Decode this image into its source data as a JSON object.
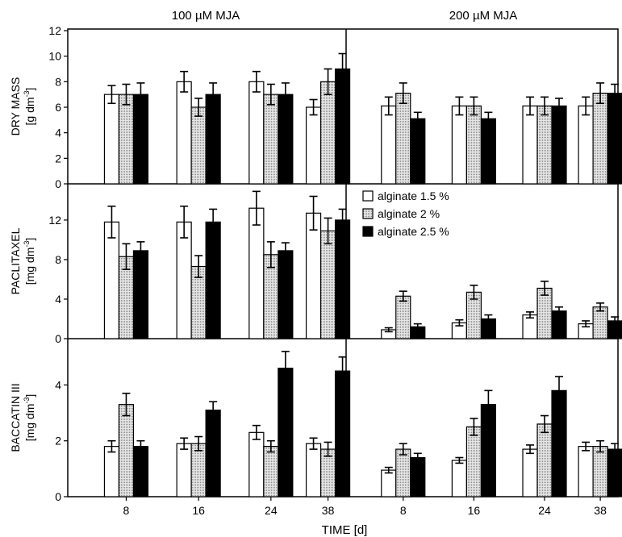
{
  "figure": {
    "x_label": "TIME [d]",
    "columns": [
      "100 µM MJA",
      "200 µM MJA"
    ],
    "x_ticks": [
      "8",
      "16",
      "24",
      "38"
    ],
    "legend": [
      "alginate 1.5 %",
      "alginate 2 %",
      "alginate 2.5 %"
    ]
  },
  "chart_data": [
    {
      "type": "bar",
      "title": "DRY MASS",
      "ylabel_line1": "DRY MASS",
      "ylabel_unit": "[g dm",
      "ylabel_sup": "-3",
      "ylabel_end": "]",
      "ylim": [
        0,
        12
      ],
      "y_ticks": [
        "0",
        "2",
        "4",
        "6",
        "8",
        "10",
        "12"
      ],
      "categories": [
        "8",
        "16",
        "24",
        "38"
      ],
      "series_colors": [
        "#ffffff",
        "pattern-gray",
        "#000000"
      ],
      "panels": [
        {
          "label": "100 µM MJA",
          "series": [
            {
              "name": "alginate 1.5 %",
              "values": [
                7.0,
                8.0,
                8.0,
                6.0
              ],
              "errors": [
                0.7,
                0.8,
                0.8,
                0.6
              ]
            },
            {
              "name": "alginate 2 %",
              "values": [
                7.0,
                6.0,
                7.0,
                8.0
              ],
              "errors": [
                0.8,
                0.7,
                0.8,
                1.0
              ]
            },
            {
              "name": "alginate 2.5 %",
              "values": [
                7.0,
                7.0,
                7.0,
                9.0
              ],
              "errors": [
                0.9,
                0.9,
                0.9,
                1.2
              ]
            }
          ]
        },
        {
          "label": "200 µM MJA",
          "series": [
            {
              "name": "alginate 1.5 %",
              "values": [
                6.1,
                6.1,
                6.1,
                6.1
              ],
              "errors": [
                0.7,
                0.7,
                0.7,
                0.7
              ]
            },
            {
              "name": "alginate 2 %",
              "values": [
                7.1,
                6.1,
                6.1,
                7.1
              ],
              "errors": [
                0.8,
                0.7,
                0.7,
                0.8
              ]
            },
            {
              "name": "alginate 2.5 %",
              "values": [
                5.1,
                5.1,
                6.1,
                7.1
              ],
              "errors": [
                0.5,
                0.5,
                0.6,
                0.7
              ]
            }
          ]
        }
      ]
    },
    {
      "type": "bar",
      "title": "PACLITAXEL",
      "ylabel_line1": "PACLITAXEL",
      "ylabel_unit": "[mg dm",
      "ylabel_sup": "-3",
      "ylabel_end": "]",
      "ylim": [
        0,
        15.5
      ],
      "y_ticks": [
        "0",
        "4",
        "8",
        "12"
      ],
      "categories": [
        "8",
        "16",
        "24",
        "38"
      ],
      "series_colors": [
        "#ffffff",
        "pattern-gray",
        "#000000"
      ],
      "panels": [
        {
          "label": "100 µM MJA",
          "series": [
            {
              "name": "alginate 1.5 %",
              "values": [
                11.8,
                11.8,
                13.2,
                12.7
              ],
              "errors": [
                1.6,
                1.6,
                1.7,
                1.7
              ]
            },
            {
              "name": "alginate 2 %",
              "values": [
                8.3,
                7.3,
                8.5,
                10.9
              ],
              "errors": [
                1.3,
                1.1,
                1.3,
                1.3
              ]
            },
            {
              "name": "alginate 2.5 %",
              "values": [
                8.9,
                11.8,
                8.9,
                12.0
              ],
              "errors": [
                0.9,
                1.3,
                0.8,
                1.1
              ]
            }
          ]
        },
        {
          "label": "200 µM MJA",
          "series": [
            {
              "name": "alginate 1.5 %",
              "values": [
                0.9,
                1.6,
                2.4,
                1.5
              ],
              "errors": [
                0.2,
                0.3,
                0.3,
                0.3
              ]
            },
            {
              "name": "alginate 2 %",
              "values": [
                4.3,
                4.7,
                5.1,
                3.2
              ],
              "errors": [
                0.5,
                0.7,
                0.7,
                0.4
              ]
            },
            {
              "name": "alginate 2.5 %",
              "values": [
                1.2,
                2.0,
                2.8,
                1.8
              ],
              "errors": [
                0.3,
                0.4,
                0.4,
                0.4
              ]
            }
          ]
        }
      ]
    },
    {
      "type": "bar",
      "title": "BACCATIN III",
      "ylabel_line1": "BACCATIN III",
      "ylabel_unit": "[mg dm",
      "ylabel_sup": "-3",
      "ylabel_end": "]",
      "ylim": [
        0,
        5.6
      ],
      "y_ticks": [
        "0",
        "2",
        "4"
      ],
      "categories": [
        "8",
        "16",
        "24",
        "38"
      ],
      "series_colors": [
        "#ffffff",
        "pattern-gray",
        "#000000"
      ],
      "panels": [
        {
          "label": "100 µM MJA",
          "series": [
            {
              "name": "alginate 1.5 %",
              "values": [
                1.8,
                1.9,
                2.3,
                1.9
              ],
              "errors": [
                0.2,
                0.2,
                0.25,
                0.2
              ]
            },
            {
              "name": "alginate 2 %",
              "values": [
                3.3,
                1.9,
                1.8,
                1.7
              ],
              "errors": [
                0.4,
                0.25,
                0.2,
                0.25
              ]
            },
            {
              "name": "alginate 2.5 %",
              "values": [
                1.8,
                3.1,
                4.6,
                4.5
              ],
              "errors": [
                0.2,
                0.3,
                0.6,
                0.5
              ]
            }
          ]
        },
        {
          "label": "200 µM MJA",
          "series": [
            {
              "name": "alginate 1.5 %",
              "values": [
                0.95,
                1.3,
                1.7,
                1.8
              ],
              "errors": [
                0.1,
                0.1,
                0.15,
                0.15
              ]
            },
            {
              "name": "alginate 2 %",
              "values": [
                1.7,
                2.5,
                2.6,
                1.8
              ],
              "errors": [
                0.2,
                0.3,
                0.3,
                0.2
              ]
            },
            {
              "name": "alginate 2.5 %",
              "values": [
                1.4,
                3.3,
                3.8,
                1.7
              ],
              "errors": [
                0.15,
                0.5,
                0.5,
                0.2
              ]
            }
          ]
        }
      ]
    }
  ]
}
